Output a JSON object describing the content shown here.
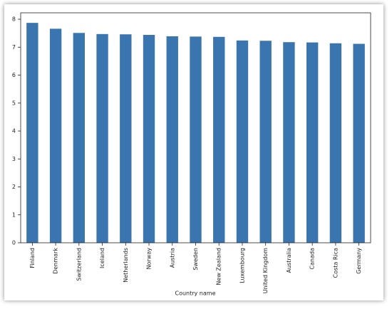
{
  "chart_data": {
    "type": "bar",
    "x_label": "Country name",
    "categories": [
      "Finland",
      "Denmark",
      "Switzerland",
      "Iceland",
      "Netherlands",
      "Norway",
      "Austria",
      "Sweden",
      "New Zealand",
      "Luxembourg",
      "United Kingdom",
      "Australia",
      "Canada",
      "Costa Rica",
      "Germany"
    ],
    "values": [
      7.87,
      7.66,
      7.51,
      7.47,
      7.46,
      7.44,
      7.39,
      7.38,
      7.37,
      7.24,
      7.23,
      7.18,
      7.17,
      7.14,
      7.12
    ],
    "color": "#3a75b0",
    "ylim": [
      0,
      8.23
    ],
    "yticks": [
      0,
      1,
      2,
      3,
      4,
      5,
      6,
      7,
      8
    ],
    "grid": false
  }
}
